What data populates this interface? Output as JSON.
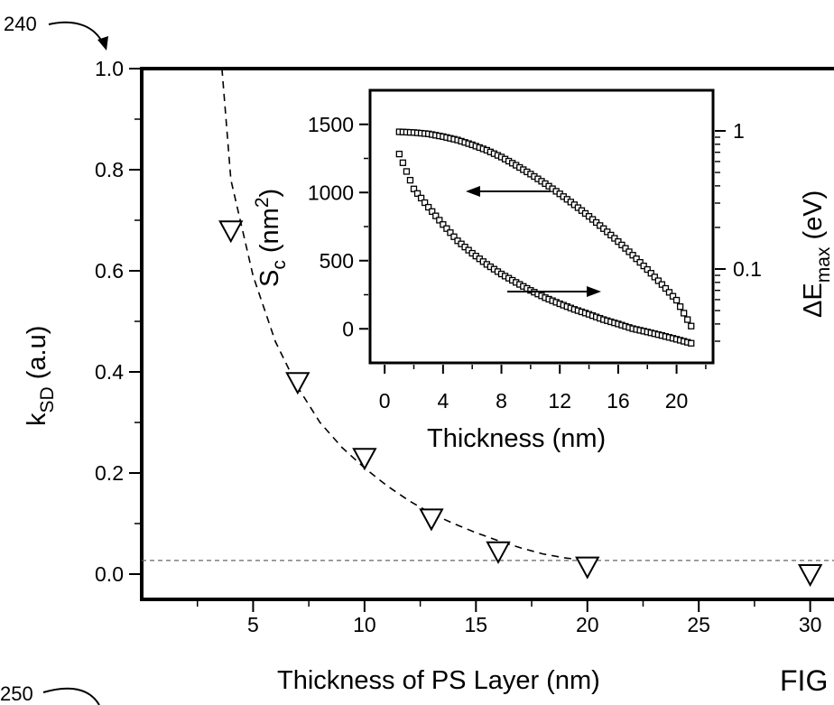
{
  "chart_data": [
    {
      "type": "scatter",
      "title": "",
      "xlabel": "Thickness of PS Layer (nm)",
      "ylabel": "kSD (a.u)",
      "ylabel_main": "k",
      "ylabel_sub": "SD",
      "ylabel_rest": " (a.u)",
      "xlim": [
        0,
        32
      ],
      "ylim": [
        -0.05,
        1.0
      ],
      "xticks": [
        5,
        10,
        15,
        20,
        25,
        30
      ],
      "yticks": [
        0.0,
        0.2,
        0.4,
        0.6,
        0.8,
        1.0
      ],
      "ytick_labels": [
        "0.0",
        "0.2",
        "0.4",
        "0.6",
        "0.8",
        "1.0"
      ],
      "grid": false,
      "series": [
        {
          "marker": "down-triangle",
          "x": [
            4,
            7,
            10,
            13,
            16,
            20,
            30
          ],
          "y": [
            0.68,
            0.38,
            0.23,
            0.11,
            0.045,
            0.015,
            0.0
          ]
        }
      ],
      "fit_curve": {
        "style": "dashed",
        "x": [
          3.6,
          4,
          5,
          6,
          7,
          8,
          9,
          10,
          11,
          12,
          13,
          14,
          15,
          16,
          17,
          18,
          19,
          20
        ],
        "y": [
          1.0,
          0.78,
          0.59,
          0.46,
          0.37,
          0.3,
          0.25,
          0.21,
          0.175,
          0.145,
          0.12,
          0.1,
          0.082,
          0.066,
          0.052,
          0.04,
          0.032,
          0.027
        ]
      },
      "reference_line": {
        "style": "dashed",
        "y": 0.027
      }
    },
    {
      "type": "scatter",
      "title": "",
      "xlabel": "Thickness (nm)",
      "ylabel_left": "Sc (nm2)",
      "ylabel_left_main": "S",
      "ylabel_left_sub": "c",
      "ylabel_left_pre": " (nm",
      "ylabel_left_sup": "2",
      "ylabel_left_post": ")",
      "ylabel_right": "ΔEmax (eV)",
      "ylabel_right_main": "ΔE",
      "ylabel_right_sub": "max",
      "ylabel_right_post": " (eV)",
      "xlim": [
        -1,
        22.5
      ],
      "ylim_left": [
        -250,
        1750
      ],
      "yscale_right": "log",
      "xticks": [
        0,
        4,
        8,
        12,
        16,
        20
      ],
      "yticks_left": [
        0,
        500,
        1000,
        1500
      ],
      "yticks_right": [
        0.1,
        1
      ],
      "ytick_right_labels": [
        "0.1",
        "1"
      ],
      "grid": false,
      "series": [
        {
          "axis": "left",
          "marker": "open-square",
          "x": [
            1,
            2,
            3,
            4,
            5,
            6,
            7,
            8,
            9,
            10,
            11,
            12,
            13,
            14,
            15,
            16,
            17,
            18,
            19,
            20,
            21
          ],
          "y": [
            1445,
            1440,
            1430,
            1410,
            1385,
            1350,
            1310,
            1260,
            1200,
            1135,
            1065,
            990,
            910,
            825,
            735,
            640,
            540,
            435,
            325,
            210,
            20
          ]
        },
        {
          "axis": "right",
          "marker": "open-square",
          "x": [
            1,
            2,
            3,
            4,
            5,
            6,
            7,
            8,
            9,
            10,
            11,
            12,
            13,
            14,
            15,
            16,
            17,
            18,
            19,
            20,
            21
          ],
          "y": [
            0.68,
            0.38,
            0.28,
            0.21,
            0.16,
            0.13,
            0.108,
            0.092,
            0.08,
            0.07,
            0.062,
            0.056,
            0.051,
            0.047,
            0.043,
            0.04,
            0.037,
            0.035,
            0.033,
            0.031,
            0.029
          ]
        }
      ]
    }
  ],
  "ref_labels": {
    "top": "240",
    "bottom": "250"
  },
  "figure_label": "FIG"
}
